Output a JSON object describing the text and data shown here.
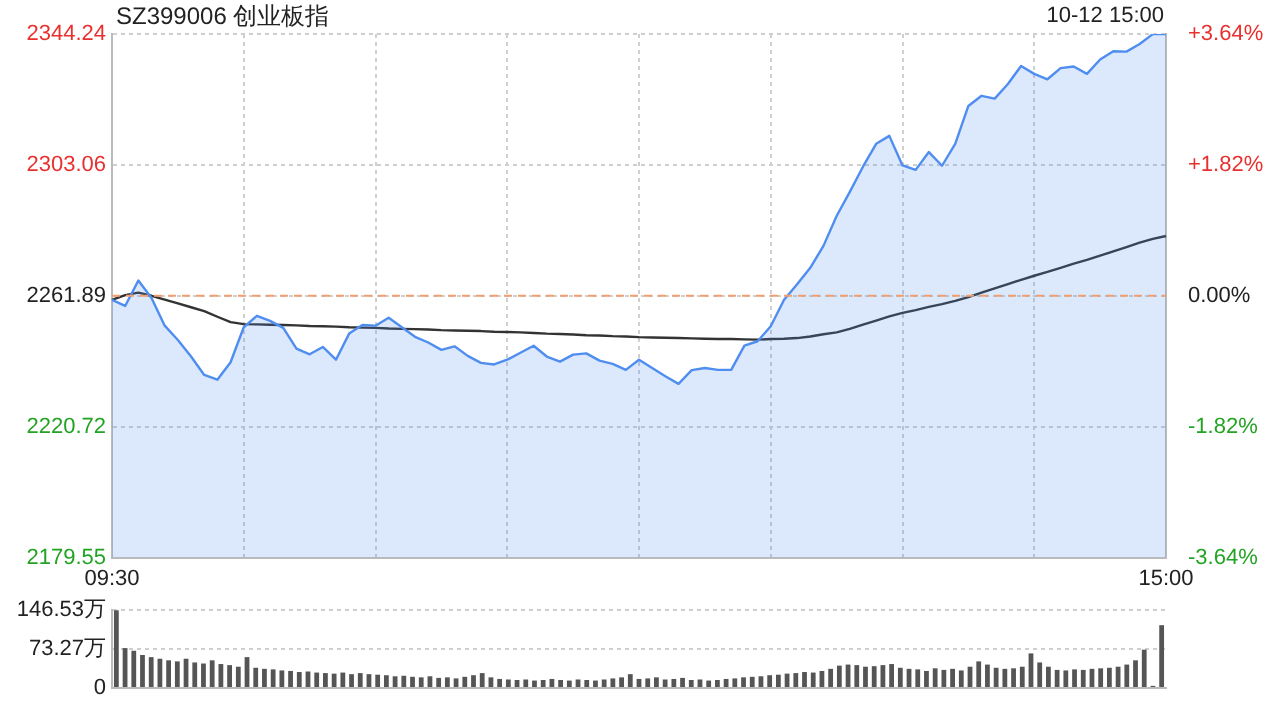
{
  "chart_data": [
    {
      "type": "line",
      "title": "SZ399006 创业板指",
      "annotations": [
        "10-12 15:00"
      ],
      "categories": [
        "09:30",
        null,
        null,
        null,
        null,
        null,
        null,
        null,
        null,
        null,
        null,
        null,
        null,
        null,
        null,
        null,
        null,
        null,
        null,
        null,
        null,
        null,
        null,
        null,
        null,
        null,
        null,
        null,
        null,
        null,
        null,
        null,
        null,
        null,
        null,
        null,
        null,
        null,
        null,
        null,
        null,
        null,
        null,
        null,
        null,
        null,
        null,
        null,
        null,
        null,
        null,
        null,
        null,
        null,
        null,
        null,
        null,
        null,
        null,
        null,
        null,
        null,
        null,
        null,
        null,
        null,
        null,
        null,
        null,
        null,
        null,
        null,
        null,
        null,
        null,
        null,
        null,
        null,
        null,
        null,
        "15:00"
      ],
      "ylim": [
        2179.55,
        2344.24
      ],
      "yticks": [
        2179.55,
        2220.72,
        2261.89,
        2303.06,
        2344.24
      ],
      "y2lim": [
        -3.64,
        3.64
      ],
      "y2ticks": [
        {
          "value": -3.64,
          "label": "-3.64%"
        },
        {
          "value": -1.82,
          "label": "-1.82%"
        },
        {
          "value": 0,
          "label": "0.00%"
        },
        {
          "value": 1.82,
          "label": "+1.82%"
        },
        {
          "value": 3.64,
          "label": "+3.64%"
        }
      ],
      "grid": true,
      "legend": false,
      "ref_lines": [
        {
          "axis": "y",
          "value": 2261.89,
          "color": "#f0a070",
          "line_style": "dashed"
        }
      ],
      "series": [
        {
          "type": "area",
          "color": "#4f8ef0",
          "values": [
            2260.6,
            2258.7,
            2266.7,
            2261.2,
            2252.5,
            2248,
            2242.8,
            2237,
            2235.5,
            2241,
            2252,
            2255.6,
            2254,
            2251.8,
            2245.3,
            2243.5,
            2245.8,
            2241.8,
            2250,
            2252.7,
            2252.5,
            2255,
            2252,
            2249,
            2247.2,
            2244.9,
            2246,
            2243,
            2240.8,
            2240.3,
            2241.8,
            2244,
            2246.2,
            2242.8,
            2241.2,
            2243.4,
            2243.8,
            2241.5,
            2240.5,
            2238.6,
            2241.8,
            2239.2,
            2236.6,
            2234.2,
            2238.5,
            2239.2,
            2238.6,
            2238.6,
            2246.2,
            2247.6,
            2252.3,
            2260.6,
            2265.5,
            2270.7,
            2277.6,
            2287,
            2294.6,
            2302.5,
            2309.7,
            2312.2,
            2302.9,
            2301.5,
            2307.1,
            2302.8,
            2309.7,
            2321.6,
            2324.8,
            2323.9,
            2328.5,
            2334.2,
            2331.7,
            2330,
            2333.5,
            2334,
            2331.7,
            2336.2,
            2338.8,
            2338.7,
            2341.1,
            2344.2,
            2344.2
          ]
        },
        {
          "type": "line",
          "color": "#333333",
          "values": [
            2260.6,
            2262.1,
            2262.9,
            2261.9,
            2260.7,
            2259.5,
            2258.3,
            2257.1,
            2255.3,
            2253.6,
            2253.0,
            2252.9,
            2252.8,
            2252.7,
            2252.6,
            2252.4,
            2252.3,
            2252.2,
            2252.0,
            2251.9,
            2251.8,
            2251.6,
            2251.5,
            2251.4,
            2251.3,
            2251.1,
            2251.0,
            2250.9,
            2250.8,
            2250.6,
            2250.5,
            2250.4,
            2250.2,
            2250.0,
            2249.9,
            2249.7,
            2249.5,
            2249.4,
            2249.2,
            2249.1,
            2248.9,
            2248.8,
            2248.7,
            2248.6,
            2248.5,
            2248.4,
            2248.3,
            2248.3,
            2248.2,
            2248.1,
            2248.3,
            2248.4,
            2248.6,
            2249.1,
            2249.8,
            2250.4,
            2251.5,
            2252.8,
            2254.1,
            2255.4,
            2256.5,
            2257.4,
            2258.4,
            2259.3,
            2260.3,
            2261.5,
            2262.9,
            2264.2,
            2265.6,
            2266.9,
            2268.2,
            2269.4,
            2270.7,
            2272.0,
            2273.2,
            2274.5,
            2275.9,
            2277.2,
            2278.6,
            2279.8,
            2280.7
          ]
        }
      ]
    },
    {
      "type": "bar",
      "tick_labels": "y",
      "grid": "y",
      "legend": false,
      "categories": [
        null,
        null,
        null,
        null,
        null,
        null,
        null,
        null,
        null,
        null,
        null,
        null,
        null,
        null,
        null,
        null,
        null,
        null,
        null,
        null,
        null,
        null,
        null,
        null,
        null,
        null,
        null,
        null,
        null,
        null,
        null,
        null,
        null,
        null,
        null,
        null,
        null,
        null,
        null,
        null,
        null,
        null,
        null,
        null,
        null,
        null,
        null,
        null,
        null,
        null,
        null,
        null,
        null,
        null,
        null,
        null,
        null,
        null,
        null,
        null,
        null,
        null,
        null,
        null,
        null,
        null,
        null,
        null,
        null,
        null,
        null,
        null,
        null,
        null,
        null,
        null,
        null,
        null,
        null,
        null,
        null,
        null,
        null,
        null,
        null,
        null,
        null,
        null,
        null,
        null,
        null,
        null,
        null,
        null,
        null,
        null,
        null,
        null,
        null,
        null,
        null,
        null,
        null,
        null,
        null,
        null,
        null,
        null,
        null,
        null,
        null,
        null,
        null,
        null,
        null,
        null,
        null,
        null,
        null,
        null,
        null
      ],
      "ylim": [
        0,
        146.53
      ],
      "yticks": [
        0,
        {
          "value": 73.27,
          "label": "73.27万"
        },
        {
          "value": 146.53,
          "label": "146.53万"
        }
      ],
      "color": "#555555",
      "values": [
        146,
        75,
        70,
        62,
        58,
        55,
        52,
        50,
        55,
        48,
        46,
        52,
        45,
        43,
        40,
        58,
        38,
        36,
        35,
        33,
        32,
        30,
        31,
        29,
        28,
        27,
        29,
        26,
        28,
        26,
        25,
        24,
        22,
        23,
        21,
        20,
        22,
        19,
        20,
        18,
        21,
        24,
        28,
        20,
        17,
        16,
        15,
        16,
        14,
        15,
        17,
        15,
        14,
        16,
        15,
        14,
        16,
        18,
        20,
        26,
        17,
        18,
        20,
        16,
        17,
        19,
        15,
        16,
        14,
        15,
        17,
        18,
        20,
        21,
        22,
        24,
        25,
        27,
        28,
        30,
        29,
        32,
        36,
        42,
        44,
        43,
        40,
        41,
        43,
        45,
        38,
        36,
        35,
        32,
        37,
        34,
        36,
        33,
        40,
        50,
        44,
        38,
        36,
        37,
        40,
        65,
        48,
        40,
        34,
        33,
        35,
        34,
        36,
        37,
        38,
        40,
        44,
        52,
        72,
        4,
        118
      ]
    }
  ]
}
